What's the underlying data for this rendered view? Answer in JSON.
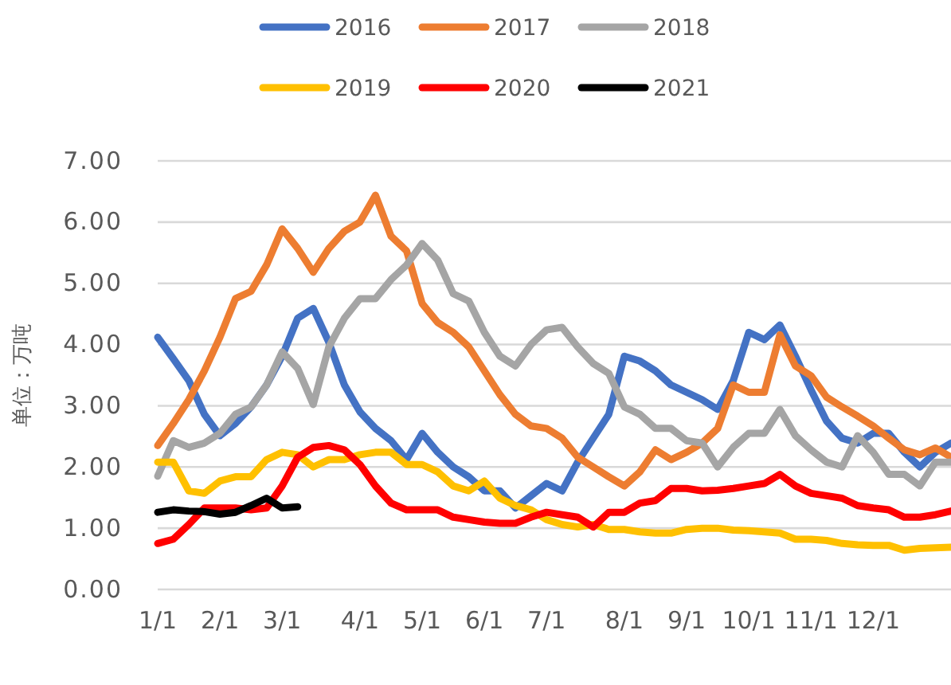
{
  "chart_data": {
    "type": "line",
    "ylabel": "单位：万吨",
    "categories": [
      "1/1",
      null,
      null,
      null,
      "2/1",
      null,
      null,
      null,
      "3/1",
      null,
      null,
      null,
      null,
      "4/1",
      null,
      null,
      null,
      "5/1",
      null,
      null,
      null,
      "6/1",
      null,
      null,
      null,
      "7/1",
      null,
      null,
      null,
      null,
      "8/1",
      null,
      null,
      null,
      "9/1",
      null,
      null,
      null,
      "10/1",
      null,
      null,
      null,
      "11/1",
      null,
      null,
      null,
      "12/1",
      null,
      null,
      null,
      null,
      null
    ],
    "ylim": [
      0,
      7
    ],
    "yticks": [
      {
        "value": 0,
        "label": "0.00"
      },
      {
        "value": 1,
        "label": "1.00"
      },
      {
        "value": 2,
        "label": "2.00"
      },
      {
        "value": 3,
        "label": "3.00"
      },
      {
        "value": 4,
        "label": "4.00"
      },
      {
        "value": 5,
        "label": "5.00"
      },
      {
        "value": 6,
        "label": "6.00"
      },
      {
        "value": 7,
        "label": "7.00"
      }
    ],
    "grid": "y",
    "legend": "top",
    "line_style": "solid",
    "series": [
      {
        "name": "2016",
        "color": "#4472c4",
        "values": [
          4.12,
          3.77,
          3.41,
          2.86,
          2.51,
          2.71,
          2.98,
          3.34,
          3.81,
          4.43,
          4.59,
          4.04,
          3.34,
          2.9,
          2.63,
          2.43,
          2.12,
          2.55,
          2.24,
          2.0,
          1.84,
          1.61,
          1.61,
          1.33,
          1.53,
          1.73,
          1.61,
          2.08,
          2.47,
          2.86,
          3.81,
          3.73,
          3.57,
          3.34,
          3.22,
          3.1,
          2.94,
          3.41,
          4.2,
          4.08,
          4.32,
          3.81,
          3.26,
          2.75,
          2.47,
          2.39,
          2.55,
          2.55,
          2.24,
          2.0,
          2.24,
          2.39
        ]
      },
      {
        "name": "2017",
        "color": "#ed7d31",
        "values": [
          2.35,
          2.71,
          3.1,
          3.57,
          4.12,
          4.75,
          4.87,
          5.3,
          5.89,
          5.57,
          5.18,
          5.57,
          5.85,
          6.0,
          6.44,
          5.77,
          5.53,
          4.67,
          4.36,
          4.2,
          3.96,
          3.57,
          3.18,
          2.86,
          2.67,
          2.63,
          2.47,
          2.16,
          2.0,
          1.84,
          1.69,
          1.92,
          2.28,
          2.12,
          2.24,
          2.39,
          2.63,
          3.34,
          3.22,
          3.22,
          4.16,
          3.65,
          3.49,
          3.14,
          2.98,
          2.83,
          2.67,
          2.47,
          2.28,
          2.2,
          2.31,
          2.16
        ]
      },
      {
        "name": "2018",
        "color": "#a5a5a5",
        "values": [
          1.85,
          2.43,
          2.32,
          2.39,
          2.55,
          2.86,
          2.98,
          3.34,
          3.88,
          3.61,
          3.02,
          3.96,
          4.43,
          4.75,
          4.75,
          5.06,
          5.3,
          5.65,
          5.38,
          4.83,
          4.71,
          4.2,
          3.81,
          3.65,
          4.0,
          4.24,
          4.28,
          3.96,
          3.69,
          3.53,
          2.98,
          2.86,
          2.63,
          2.63,
          2.43,
          2.39,
          2.0,
          2.32,
          2.55,
          2.55,
          2.94,
          2.51,
          2.28,
          2.08,
          2.0,
          2.51,
          2.24,
          1.88,
          1.88,
          1.69,
          2.08,
          2.08
        ]
      },
      {
        "name": "2019",
        "color": "#ffc000",
        "values": [
          2.08,
          2.08,
          1.61,
          1.57,
          1.77,
          1.84,
          1.84,
          2.12,
          2.24,
          2.2,
          2.0,
          2.12,
          2.12,
          2.2,
          2.24,
          2.24,
          2.04,
          2.04,
          1.92,
          1.69,
          1.61,
          1.77,
          1.49,
          1.37,
          1.3,
          1.14,
          1.06,
          1.02,
          1.06,
          0.98,
          0.98,
          0.94,
          0.92,
          0.92,
          0.98,
          1.0,
          1.0,
          0.97,
          0.96,
          0.94,
          0.92,
          0.82,
          0.82,
          0.8,
          0.75,
          0.73,
          0.72,
          0.72,
          0.64,
          0.67,
          0.68,
          0.69
        ]
      },
      {
        "name": "2020",
        "color": "#ff0000",
        "values": [
          0.75,
          0.82,
          1.06,
          1.33,
          1.33,
          1.33,
          1.3,
          1.33,
          1.69,
          2.16,
          2.32,
          2.35,
          2.28,
          2.04,
          1.69,
          1.41,
          1.3,
          1.3,
          1.3,
          1.18,
          1.14,
          1.1,
          1.08,
          1.08,
          1.18,
          1.26,
          1.22,
          1.18,
          1.02,
          1.26,
          1.26,
          1.41,
          1.45,
          1.65,
          1.65,
          1.61,
          1.62,
          1.65,
          1.69,
          1.73,
          1.88,
          1.69,
          1.57,
          1.53,
          1.49,
          1.37,
          1.33,
          1.3,
          1.18,
          1.18,
          1.22,
          1.28
        ]
      },
      {
        "name": "2021",
        "color": "#000000",
        "values": [
          1.26,
          1.3,
          1.28,
          1.27,
          1.23,
          1.26,
          1.37,
          1.49,
          1.33,
          1.35,
          null,
          null,
          null,
          null,
          null,
          null,
          null,
          null,
          null,
          null,
          null,
          null,
          null,
          null,
          null,
          null,
          null,
          null,
          null,
          null,
          null,
          null,
          null,
          null,
          null,
          null,
          null,
          null,
          null,
          null,
          null,
          null,
          null,
          null,
          null,
          null,
          null,
          null,
          null,
          null,
          null,
          null
        ]
      }
    ]
  }
}
